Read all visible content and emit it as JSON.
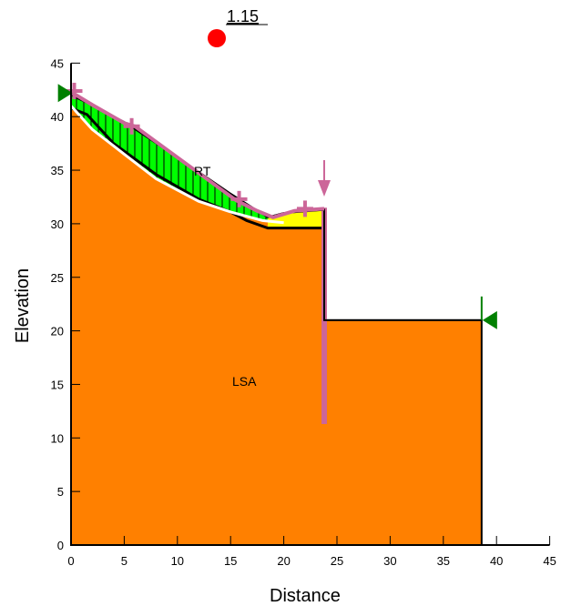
{
  "factor_of_safety": "1.15",
  "axes": {
    "xlabel": "Distance",
    "ylabel": "Elevation",
    "x_ticks": [
      0,
      5,
      10,
      15,
      20,
      25,
      30,
      35,
      40,
      45
    ],
    "y_ticks": [
      0,
      5,
      10,
      15,
      20,
      25,
      30,
      35,
      40,
      45
    ],
    "xlim": [
      0,
      45
    ],
    "ylim": [
      0,
      45
    ]
  },
  "regions": {
    "main_label": "LSA",
    "upper_label": "RT"
  },
  "colors": {
    "soil": "#ff8000",
    "slip_mass": "#00ff00",
    "toe_fill": "#ffff00",
    "slip_surface": "#ffffff",
    "fos_marker": "#ff0000",
    "reinforcement": "#cc6699",
    "boundary_flag": "#008000",
    "outline": "#000000"
  },
  "geometry": {
    "ground_profile": [
      [
        0,
        42
      ],
      [
        1.5,
        41.3
      ],
      [
        5,
        39.5
      ],
      [
        10,
        36.2
      ],
      [
        15,
        32.8
      ],
      [
        18.5,
        30.6
      ],
      [
        20,
        31
      ],
      [
        23.8,
        31.3
      ],
      [
        23.8,
        21
      ],
      [
        38.6,
        21
      ],
      [
        38.6,
        0
      ],
      [
        0,
        0
      ]
    ],
    "slip_surface": [
      [
        0,
        41
      ],
      [
        2,
        38.8
      ],
      [
        5,
        36.5
      ],
      [
        8,
        34.2
      ],
      [
        12,
        32.1
      ],
      [
        15,
        31.1
      ],
      [
        18,
        30.3
      ],
      [
        20,
        30.1
      ]
    ],
    "lower_boundary": [
      [
        0,
        40.8
      ],
      [
        1.5,
        40.2
      ],
      [
        4,
        37.5
      ],
      [
        8,
        34.6
      ],
      [
        12,
        32.3
      ],
      [
        15,
        31.1
      ],
      [
        16.5,
        30.3
      ],
      [
        18.5,
        29.6
      ],
      [
        23.8,
        29.6
      ]
    ],
    "yellow_zone": [
      [
        18.5,
        30.6
      ],
      [
        20,
        31
      ],
      [
        23.8,
        31.3
      ],
      [
        23.8,
        29.6
      ],
      [
        18.5,
        29.6
      ]
    ],
    "reinforcement_line": [
      [
        23.8,
        31.5
      ],
      [
        23.8,
        11.3
      ]
    ],
    "marker_crosses": [
      [
        0.3,
        42.4
      ],
      [
        5.7,
        39.1
      ],
      [
        15.8,
        32.3
      ],
      [
        22,
        31.4
      ]
    ],
    "flags": [
      [
        -0.2,
        42.2
      ],
      [
        39.2,
        21
      ]
    ],
    "fos_point": [
      13.8,
      47.5
    ]
  }
}
